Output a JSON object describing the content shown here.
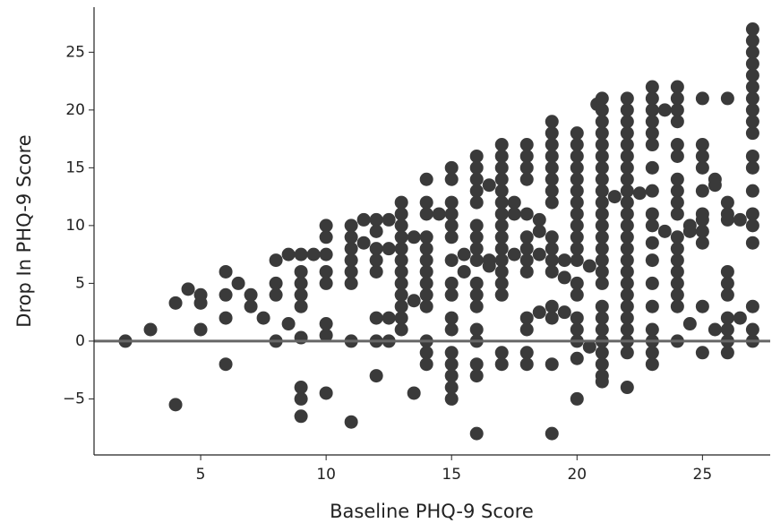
{
  "chart_data": {
    "type": "scatter",
    "xlabel": "Baseline PHQ-9 Score",
    "ylabel": "Drop In PHQ-9 Score",
    "color": "#3a3a3a",
    "hline": 0,
    "hline_color": "#666666",
    "xlim": [
      0.75,
      27.7
    ],
    "ylim": [
      -9.85,
      28.9
    ],
    "xticks": [
      5,
      10,
      15,
      20,
      25
    ],
    "yticks": [
      {
        "value": -5,
        "label": "−5"
      },
      0,
      5,
      10,
      15,
      20,
      25
    ],
    "x": [
      2,
      3,
      4,
      4,
      4.5,
      5,
      5,
      5,
      6,
      6,
      6,
      6,
      6.5,
      7,
      7,
      7.5,
      8,
      8,
      8,
      8,
      8.5,
      8.5,
      9,
      9,
      9,
      9,
      9,
      9,
      9,
      9,
      9,
      9.5,
      10,
      10,
      10,
      10,
      10,
      10,
      10,
      10,
      11,
      11,
      11,
      11,
      11,
      11,
      11,
      11,
      11.5,
      11.5,
      12,
      12,
      12,
      12,
      12,
      12,
      12,
      12,
      12.5,
      12.5,
      12.5,
      12.5,
      13,
      13,
      13,
      13,
      13,
      13,
      13,
      13,
      13,
      13,
      13,
      13,
      13.5,
      13.5,
      13.5,
      14,
      14,
      14,
      14,
      14,
      14,
      14,
      14,
      14,
      14,
      14,
      14,
      14,
      14.5,
      15,
      15,
      15,
      15,
      15,
      15,
      15,
      15,
      15,
      15,
      15,
      15,
      15,
      15,
      15,
      15,
      15.5,
      15.5,
      16,
      16,
      16,
      16,
      16,
      16,
      16,
      16,
      16,
      16,
      16,
      16,
      16,
      16,
      16,
      16,
      16,
      16.5,
      16.5,
      16.5,
      17,
      17,
      17,
      17,
      17,
      17,
      17,
      17,
      17,
      17,
      17,
      17,
      17,
      17,
      17,
      17,
      17.5,
      17.5,
      17.5,
      18,
      18,
      18,
      18,
      18,
      18,
      18,
      18,
      18,
      18,
      18,
      18,
      18,
      18.5,
      18.5,
      18.5,
      18.5,
      19,
      19,
      19,
      19,
      19,
      19,
      19,
      19,
      19,
      19,
      19,
      19,
      19,
      19,
      19,
      19,
      19.5,
      19.5,
      19.5,
      20,
      20,
      20,
      20,
      20,
      20,
      20,
      20,
      20,
      20,
      20,
      20,
      20,
      20,
      20,
      20,
      20,
      20,
      20,
      20.5,
      20.5,
      20.8,
      21,
      21,
      21,
      21,
      21,
      21,
      21,
      21,
      21,
      21,
      21,
      21,
      21,
      21,
      21,
      21,
      21,
      21,
      21,
      21,
      21,
      21,
      21,
      21,
      21,
      21.5,
      22,
      22,
      22,
      22,
      22,
      22,
      22,
      22,
      22,
      22,
      22,
      22,
      22,
      22,
      22,
      22,
      22,
      22,
      22,
      22,
      22,
      22,
      22,
      22,
      22.5,
      23,
      23,
      23,
      23,
      23,
      23,
      23,
      23,
      23,
      23,
      23,
      23,
      23,
      23,
      23,
      23,
      23,
      23,
      23.5,
      23.5,
      24,
      24,
      24,
      24,
      24,
      24,
      24,
      24,
      24,
      24,
      24,
      24,
      24,
      24,
      24,
      24,
      24,
      24,
      24.5,
      24.5,
      24.5,
      25,
      25,
      25,
      25,
      25,
      25,
      25,
      25,
      25,
      25,
      25,
      25.5,
      25.5,
      25.5,
      26,
      26,
      26,
      26,
      26,
      26,
      26,
      26,
      26,
      26,
      26,
      26.5,
      26.5,
      27,
      27,
      27,
      27,
      27,
      27,
      27,
      27,
      27,
      27,
      27,
      27,
      27,
      27,
      27,
      27,
      27,
      27,
      27
    ],
    "y": [
      0,
      1,
      3.3,
      -5.5,
      4.5,
      4,
      3.3,
      1,
      6,
      4,
      2,
      -2,
      5,
      4,
      3,
      2,
      7,
      5,
      4,
      0,
      1.5,
      7.5,
      7.5,
      6,
      5,
      4,
      3,
      0.3,
      -4,
      -5,
      -6.5,
      7.5,
      10,
      9,
      7.5,
      6,
      5,
      1.5,
      0.5,
      -4.5,
      10,
      9,
      8,
      7,
      6,
      5,
      0,
      -7,
      10.5,
      8.5,
      10.5,
      9.5,
      8,
      7,
      6,
      2,
      0,
      -3,
      10.5,
      8,
      2,
      0,
      12,
      11,
      10,
      9,
      8,
      7,
      6,
      5,
      4,
      3,
      2,
      1,
      9,
      3.5,
      -4.5,
      14,
      12,
      11,
      9,
      8,
      7,
      6,
      5,
      4,
      3,
      0,
      -1,
      -2,
      11,
      15,
      14,
      12,
      11,
      10,
      9,
      7,
      5,
      4,
      2,
      1,
      -1,
      -2,
      -3,
      -4,
      -5,
      7.5,
      6,
      16,
      15,
      14,
      13,
      12,
      10,
      9,
      8,
      7,
      5,
      4,
      3,
      1,
      0,
      -2,
      -3,
      -8,
      13.5,
      7,
      6.5,
      17,
      16,
      15,
      14,
      13,
      12,
      11,
      10,
      9,
      8,
      7,
      6,
      5,
      4,
      -1,
      -2,
      12,
      11,
      7.5,
      17,
      16,
      15,
      14,
      11,
      9,
      8,
      7,
      6,
      2,
      1,
      -1,
      -2,
      10.5,
      9.5,
      7.5,
      2.5,
      19,
      18,
      17,
      16,
      15,
      14,
      13,
      12,
      9,
      8,
      7,
      6,
      3,
      2,
      -2,
      -8,
      7,
      5.5,
      2.5,
      18,
      17,
      16,
      15,
      14,
      13,
      12,
      11,
      10,
      9,
      8,
      7,
      5,
      4,
      2,
      1,
      0,
      -1.5,
      -5,
      6.5,
      -0.5,
      20.5,
      21,
      20,
      19,
      18,
      17,
      16,
      15,
      14,
      13,
      12,
      11,
      10,
      9,
      8,
      7,
      6,
      5,
      3,
      2,
      1,
      0,
      -1,
      -2,
      -3,
      -3.5,
      12.5,
      21,
      20,
      19,
      18,
      17,
      16,
      15,
      14,
      13,
      12,
      11,
      10,
      9,
      8,
      7,
      6,
      5,
      4,
      3,
      2,
      1,
      0,
      -1,
      -4,
      12.8,
      22,
      21,
      20,
      19,
      18,
      17,
      15,
      13,
      11,
      10,
      8.5,
      7,
      5,
      3,
      1,
      0,
      -1,
      -2,
      20,
      9.5,
      22,
      21,
      20,
      19,
      17,
      16,
      14,
      13,
      12,
      11,
      9,
      8,
      7,
      6,
      5,
      4,
      3,
      0,
      10,
      9.5,
      1.5,
      21,
      17,
      16,
      15,
      13,
      11,
      10.5,
      9.5,
      8.5,
      3,
      -1,
      14,
      13.5,
      1,
      21,
      12,
      11,
      10.5,
      6,
      5,
      4,
      2,
      1,
      0,
      -1,
      10.5,
      2,
      27,
      26,
      25,
      24,
      23,
      22,
      21,
      20,
      19,
      18,
      16,
      15,
      13,
      11,
      10,
      8.5,
      3,
      1,
      0
    ]
  }
}
